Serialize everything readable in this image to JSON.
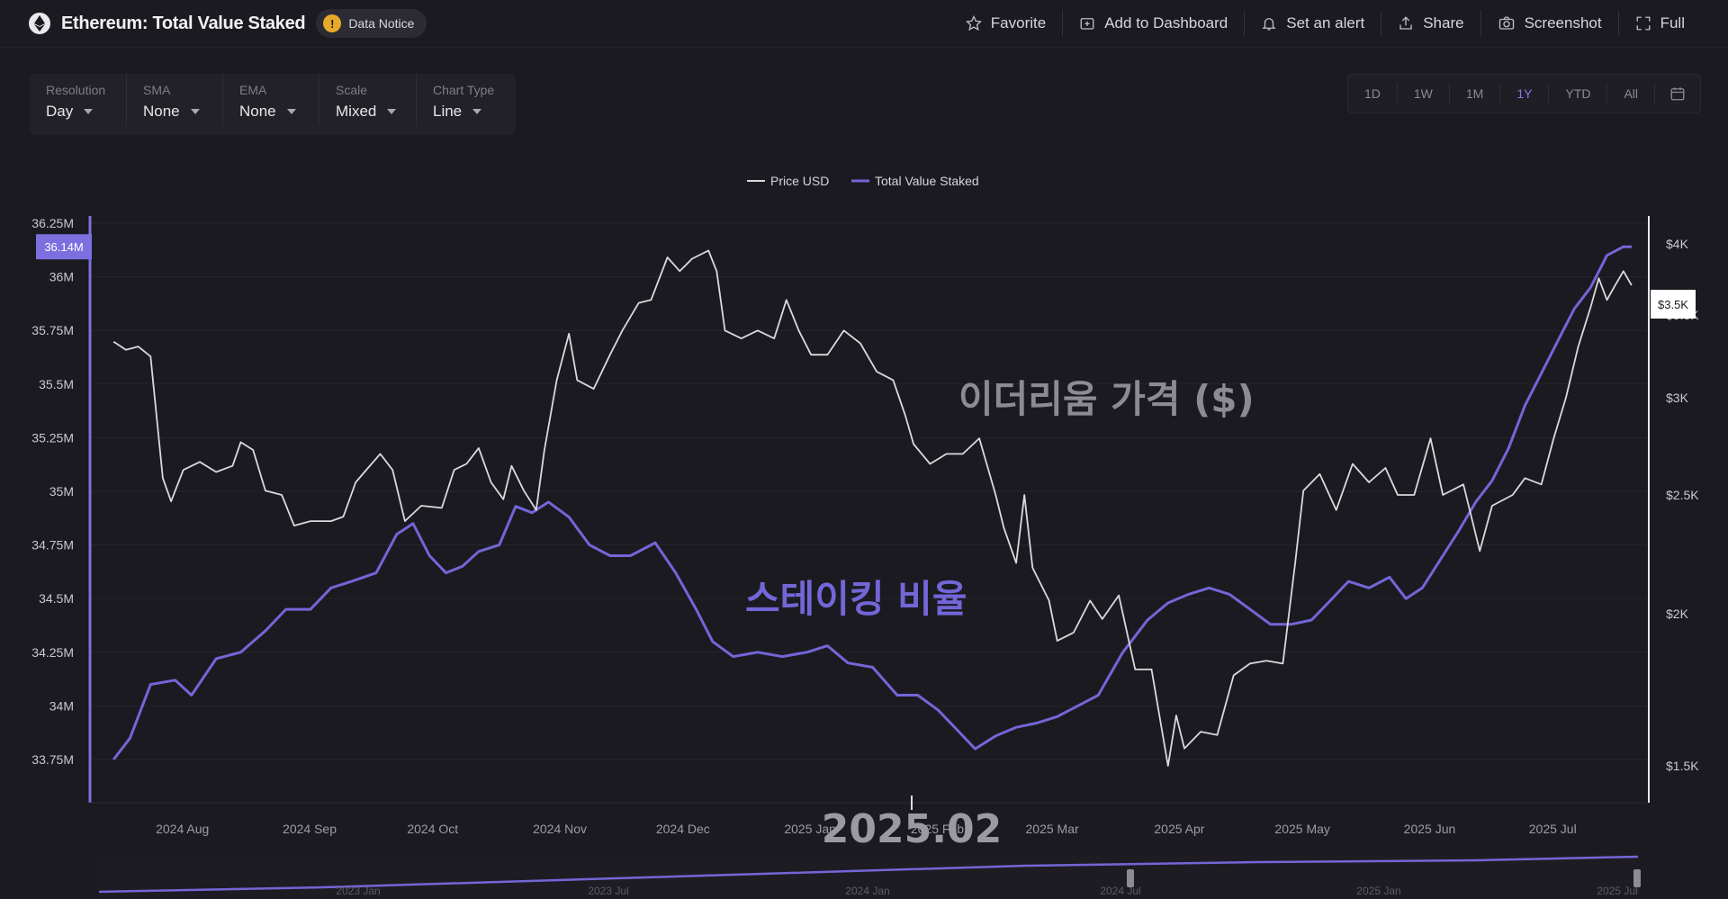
{
  "header": {
    "title": "Ethereum: Total Value Staked",
    "data_notice": "Data Notice",
    "actions": [
      {
        "label": "Favorite",
        "icon": "star-icon"
      },
      {
        "label": "Add to Dashboard",
        "icon": "dashboard-add-icon"
      },
      {
        "label": "Set an alert",
        "icon": "bell-icon"
      },
      {
        "label": "Share",
        "icon": "share-icon"
      },
      {
        "label": "Screenshot",
        "icon": "camera-icon"
      },
      {
        "label": "Full",
        "icon": "fullscreen-icon"
      }
    ]
  },
  "controls": [
    {
      "label": "Resolution",
      "value": "Day"
    },
    {
      "label": "SMA",
      "value": "None"
    },
    {
      "label": "EMA",
      "value": "None"
    },
    {
      "label": "Scale",
      "value": "Mixed"
    },
    {
      "label": "Chart Type",
      "value": "Line"
    }
  ],
  "ranges": [
    "1D",
    "1W",
    "1M",
    "1Y",
    "YTD",
    "All"
  ],
  "active_range": "1Y",
  "colors": {
    "accent": "#7d6fe0",
    "price_line": "#d9d9de",
    "staked_line": "#7366d8",
    "background": "#1b1a20"
  },
  "chart_data": {
    "type": "line",
    "legend": [
      "Price USD",
      "Total Value Staked"
    ],
    "legend_position": "top-center",
    "x_ticks": [
      "2024 Aug",
      "2024 Sep",
      "2024 Oct",
      "2024 Nov",
      "2024 Dec",
      "2025 Jan",
      "2025 Feb",
      "2025 Mar",
      "2025 Apr",
      "2025 May",
      "2025 Jun",
      "2025 Jul"
    ],
    "y_left_ticks": [
      "36.25M",
      "36M",
      "35.75M",
      "35.5M",
      "35.25M",
      "35M",
      "34.75M",
      "34.5M",
      "34.25M",
      "34M",
      "33.75M"
    ],
    "y_left_range": [
      33.7,
      36.3
    ],
    "y_right_ticks": [
      "$4K",
      "$3.5K",
      "$3K",
      "$2.5K",
      "$2K",
      "$1.5K"
    ],
    "current_left_label": "36.14M",
    "current_right_label": "$3.5K",
    "overlay_price_label": "이더리움 가격 ($)",
    "overlay_staked_label": "스테이킹 비율",
    "overlay_date_label": "2025.02",
    "navigator_labels": [
      "2023 Jan",
      "2023 Jul",
      "2024 Jan",
      "2024 Jul",
      "2025 Jan",
      "2025 Jul"
    ],
    "series": [
      {
        "name": "Price USD",
        "axis": "right",
        "points": [
          [
            "2024-07-24",
            3330
          ],
          [
            "2024-07-27",
            3280
          ],
          [
            "2024-07-30",
            3300
          ],
          [
            "2024-08-02",
            3240
          ],
          [
            "2024-08-05",
            2580
          ],
          [
            "2024-08-07",
            2470
          ],
          [
            "2024-08-10",
            2620
          ],
          [
            "2024-08-14",
            2660
          ],
          [
            "2024-08-18",
            2610
          ],
          [
            "2024-08-22",
            2640
          ],
          [
            "2024-08-24",
            2760
          ],
          [
            "2024-08-27",
            2720
          ],
          [
            "2024-08-30",
            2520
          ],
          [
            "2024-09-03",
            2500
          ],
          [
            "2024-09-06",
            2360
          ],
          [
            "2024-09-10",
            2380
          ],
          [
            "2024-09-15",
            2380
          ],
          [
            "2024-09-18",
            2400
          ],
          [
            "2024-09-21",
            2560
          ],
          [
            "2024-09-24",
            2630
          ],
          [
            "2024-09-27",
            2700
          ],
          [
            "2024-09-30",
            2620
          ],
          [
            "2024-10-03",
            2380
          ],
          [
            "2024-10-07",
            2450
          ],
          [
            "2024-10-12",
            2440
          ],
          [
            "2024-10-15",
            2620
          ],
          [
            "2024-10-18",
            2650
          ],
          [
            "2024-10-21",
            2730
          ],
          [
            "2024-10-24",
            2560
          ],
          [
            "2024-10-27",
            2480
          ],
          [
            "2024-10-29",
            2640
          ],
          [
            "2024-11-01",
            2520
          ],
          [
            "2024-11-04",
            2430
          ],
          [
            "2024-11-06",
            2720
          ],
          [
            "2024-11-09",
            3100
          ],
          [
            "2024-11-12",
            3380
          ],
          [
            "2024-11-14",
            3100
          ],
          [
            "2024-11-18",
            3050
          ],
          [
            "2024-11-22",
            3250
          ],
          [
            "2024-11-25",
            3400
          ],
          [
            "2024-11-29",
            3580
          ],
          [
            "2024-12-02",
            3600
          ],
          [
            "2024-12-06",
            3900
          ],
          [
            "2024-12-09",
            3800
          ],
          [
            "2024-12-12",
            3890
          ],
          [
            "2024-12-16",
            3950
          ],
          [
            "2024-12-18",
            3800
          ],
          [
            "2024-12-20",
            3400
          ],
          [
            "2024-12-24",
            3350
          ],
          [
            "2024-12-28",
            3400
          ],
          [
            "2025-01-01",
            3350
          ],
          [
            "2025-01-04",
            3600
          ],
          [
            "2025-01-07",
            3400
          ],
          [
            "2025-01-10",
            3250
          ],
          [
            "2025-01-14",
            3250
          ],
          [
            "2025-01-18",
            3400
          ],
          [
            "2025-01-22",
            3320
          ],
          [
            "2025-01-26",
            3150
          ],
          [
            "2025-01-30",
            3100
          ],
          [
            "2025-02-02",
            2900
          ],
          [
            "2025-02-04",
            2750
          ],
          [
            "2025-02-08",
            2650
          ],
          [
            "2025-02-12",
            2700
          ],
          [
            "2025-02-16",
            2700
          ],
          [
            "2025-02-20",
            2780
          ],
          [
            "2025-02-24",
            2500
          ],
          [
            "2025-02-26",
            2350
          ],
          [
            "2025-03-01",
            2200
          ],
          [
            "2025-03-03",
            2500
          ],
          [
            "2025-03-05",
            2180
          ],
          [
            "2025-03-09",
            2050
          ],
          [
            "2025-03-11",
            1900
          ],
          [
            "2025-03-15",
            1930
          ],
          [
            "2025-03-19",
            2050
          ],
          [
            "2025-03-22",
            1980
          ],
          [
            "2025-03-26",
            2070
          ],
          [
            "2025-03-30",
            1800
          ],
          [
            "2025-04-03",
            1800
          ],
          [
            "2025-04-07",
            1500
          ],
          [
            "2025-04-09",
            1650
          ],
          [
            "2025-04-11",
            1550
          ],
          [
            "2025-04-15",
            1600
          ],
          [
            "2025-04-19",
            1590
          ],
          [
            "2025-04-23",
            1780
          ],
          [
            "2025-04-27",
            1820
          ],
          [
            "2025-05-01",
            1830
          ],
          [
            "2025-05-05",
            1820
          ],
          [
            "2025-05-08",
            2200
          ],
          [
            "2025-05-10",
            2520
          ],
          [
            "2025-05-14",
            2600
          ],
          [
            "2025-05-18",
            2430
          ],
          [
            "2025-05-22",
            2650
          ],
          [
            "2025-05-26",
            2560
          ],
          [
            "2025-05-30",
            2630
          ],
          [
            "2025-06-02",
            2500
          ],
          [
            "2025-06-06",
            2500
          ],
          [
            "2025-06-10",
            2780
          ],
          [
            "2025-06-13",
            2500
          ],
          [
            "2025-06-18",
            2550
          ],
          [
            "2025-06-22",
            2250
          ],
          [
            "2025-06-25",
            2450
          ],
          [
            "2025-06-30",
            2500
          ],
          [
            "2025-07-03",
            2580
          ],
          [
            "2025-07-07",
            2550
          ],
          [
            "2025-07-10",
            2780
          ],
          [
            "2025-07-13",
            3000
          ],
          [
            "2025-07-16",
            3300
          ],
          [
            "2025-07-19",
            3550
          ],
          [
            "2025-07-21",
            3750
          ],
          [
            "2025-07-23",
            3600
          ],
          [
            "2025-07-25",
            3700
          ],
          [
            "2025-07-27",
            3800
          ],
          [
            "2025-07-29",
            3700
          ]
        ]
      },
      {
        "name": "Total Value Staked",
        "axis": "left",
        "points": [
          [
            "2024-07-24",
            33.75
          ],
          [
            "2024-07-28",
            33.85
          ],
          [
            "2024-08-02",
            34.1
          ],
          [
            "2024-08-08",
            34.12
          ],
          [
            "2024-08-12",
            34.05
          ],
          [
            "2024-08-18",
            34.22
          ],
          [
            "2024-08-24",
            34.25
          ],
          [
            "2024-08-30",
            34.35
          ],
          [
            "2024-09-04",
            34.45
          ],
          [
            "2024-09-10",
            34.45
          ],
          [
            "2024-09-15",
            34.55
          ],
          [
            "2024-09-20",
            34.58
          ],
          [
            "2024-09-26",
            34.62
          ],
          [
            "2024-10-01",
            34.8
          ],
          [
            "2024-10-05",
            34.85
          ],
          [
            "2024-10-09",
            34.7
          ],
          [
            "2024-10-13",
            34.62
          ],
          [
            "2024-10-17",
            34.65
          ],
          [
            "2024-10-21",
            34.72
          ],
          [
            "2024-10-26",
            34.75
          ],
          [
            "2024-10-30",
            34.93
          ],
          [
            "2024-11-03",
            34.9
          ],
          [
            "2024-11-07",
            34.95
          ],
          [
            "2024-11-12",
            34.88
          ],
          [
            "2024-11-17",
            34.75
          ],
          [
            "2024-11-22",
            34.7
          ],
          [
            "2024-11-27",
            34.7
          ],
          [
            "2024-12-03",
            34.76
          ],
          [
            "2024-12-08",
            34.62
          ],
          [
            "2024-12-13",
            34.45
          ],
          [
            "2024-12-17",
            34.3
          ],
          [
            "2024-12-22",
            34.23
          ],
          [
            "2024-12-28",
            34.25
          ],
          [
            "2025-01-03",
            34.23
          ],
          [
            "2025-01-09",
            34.25
          ],
          [
            "2025-01-14",
            34.28
          ],
          [
            "2025-01-19",
            34.2
          ],
          [
            "2025-01-25",
            34.18
          ],
          [
            "2025-01-31",
            34.05
          ],
          [
            "2025-02-05",
            34.05
          ],
          [
            "2025-02-10",
            33.98
          ],
          [
            "2025-02-15",
            33.88
          ],
          [
            "2025-02-19",
            33.8
          ],
          [
            "2025-02-24",
            33.86
          ],
          [
            "2025-03-01",
            33.9
          ],
          [
            "2025-03-06",
            33.92
          ],
          [
            "2025-03-11",
            33.95
          ],
          [
            "2025-03-16",
            34.0
          ],
          [
            "2025-03-21",
            34.05
          ],
          [
            "2025-03-27",
            34.25
          ],
          [
            "2025-04-02",
            34.4
          ],
          [
            "2025-04-07",
            34.48
          ],
          [
            "2025-04-12",
            34.52
          ],
          [
            "2025-04-17",
            34.55
          ],
          [
            "2025-04-22",
            34.52
          ],
          [
            "2025-04-27",
            34.45
          ],
          [
            "2025-05-02",
            34.38
          ],
          [
            "2025-05-07",
            34.38
          ],
          [
            "2025-05-12",
            34.4
          ],
          [
            "2025-05-16",
            34.48
          ],
          [
            "2025-05-21",
            34.58
          ],
          [
            "2025-05-26",
            34.55
          ],
          [
            "2025-05-31",
            34.6
          ],
          [
            "2025-06-04",
            34.5
          ],
          [
            "2025-06-08",
            34.55
          ],
          [
            "2025-06-13",
            34.7
          ],
          [
            "2025-06-17",
            34.82
          ],
          [
            "2025-06-21",
            34.95
          ],
          [
            "2025-06-25",
            35.05
          ],
          [
            "2025-06-29",
            35.2
          ],
          [
            "2025-07-03",
            35.4
          ],
          [
            "2025-07-07",
            35.55
          ],
          [
            "2025-07-11",
            35.7
          ],
          [
            "2025-07-15",
            35.85
          ],
          [
            "2025-07-19",
            35.95
          ],
          [
            "2025-07-23",
            36.1
          ],
          [
            "2025-07-27",
            36.14
          ],
          [
            "2025-07-29",
            36.14
          ]
        ]
      }
    ]
  }
}
